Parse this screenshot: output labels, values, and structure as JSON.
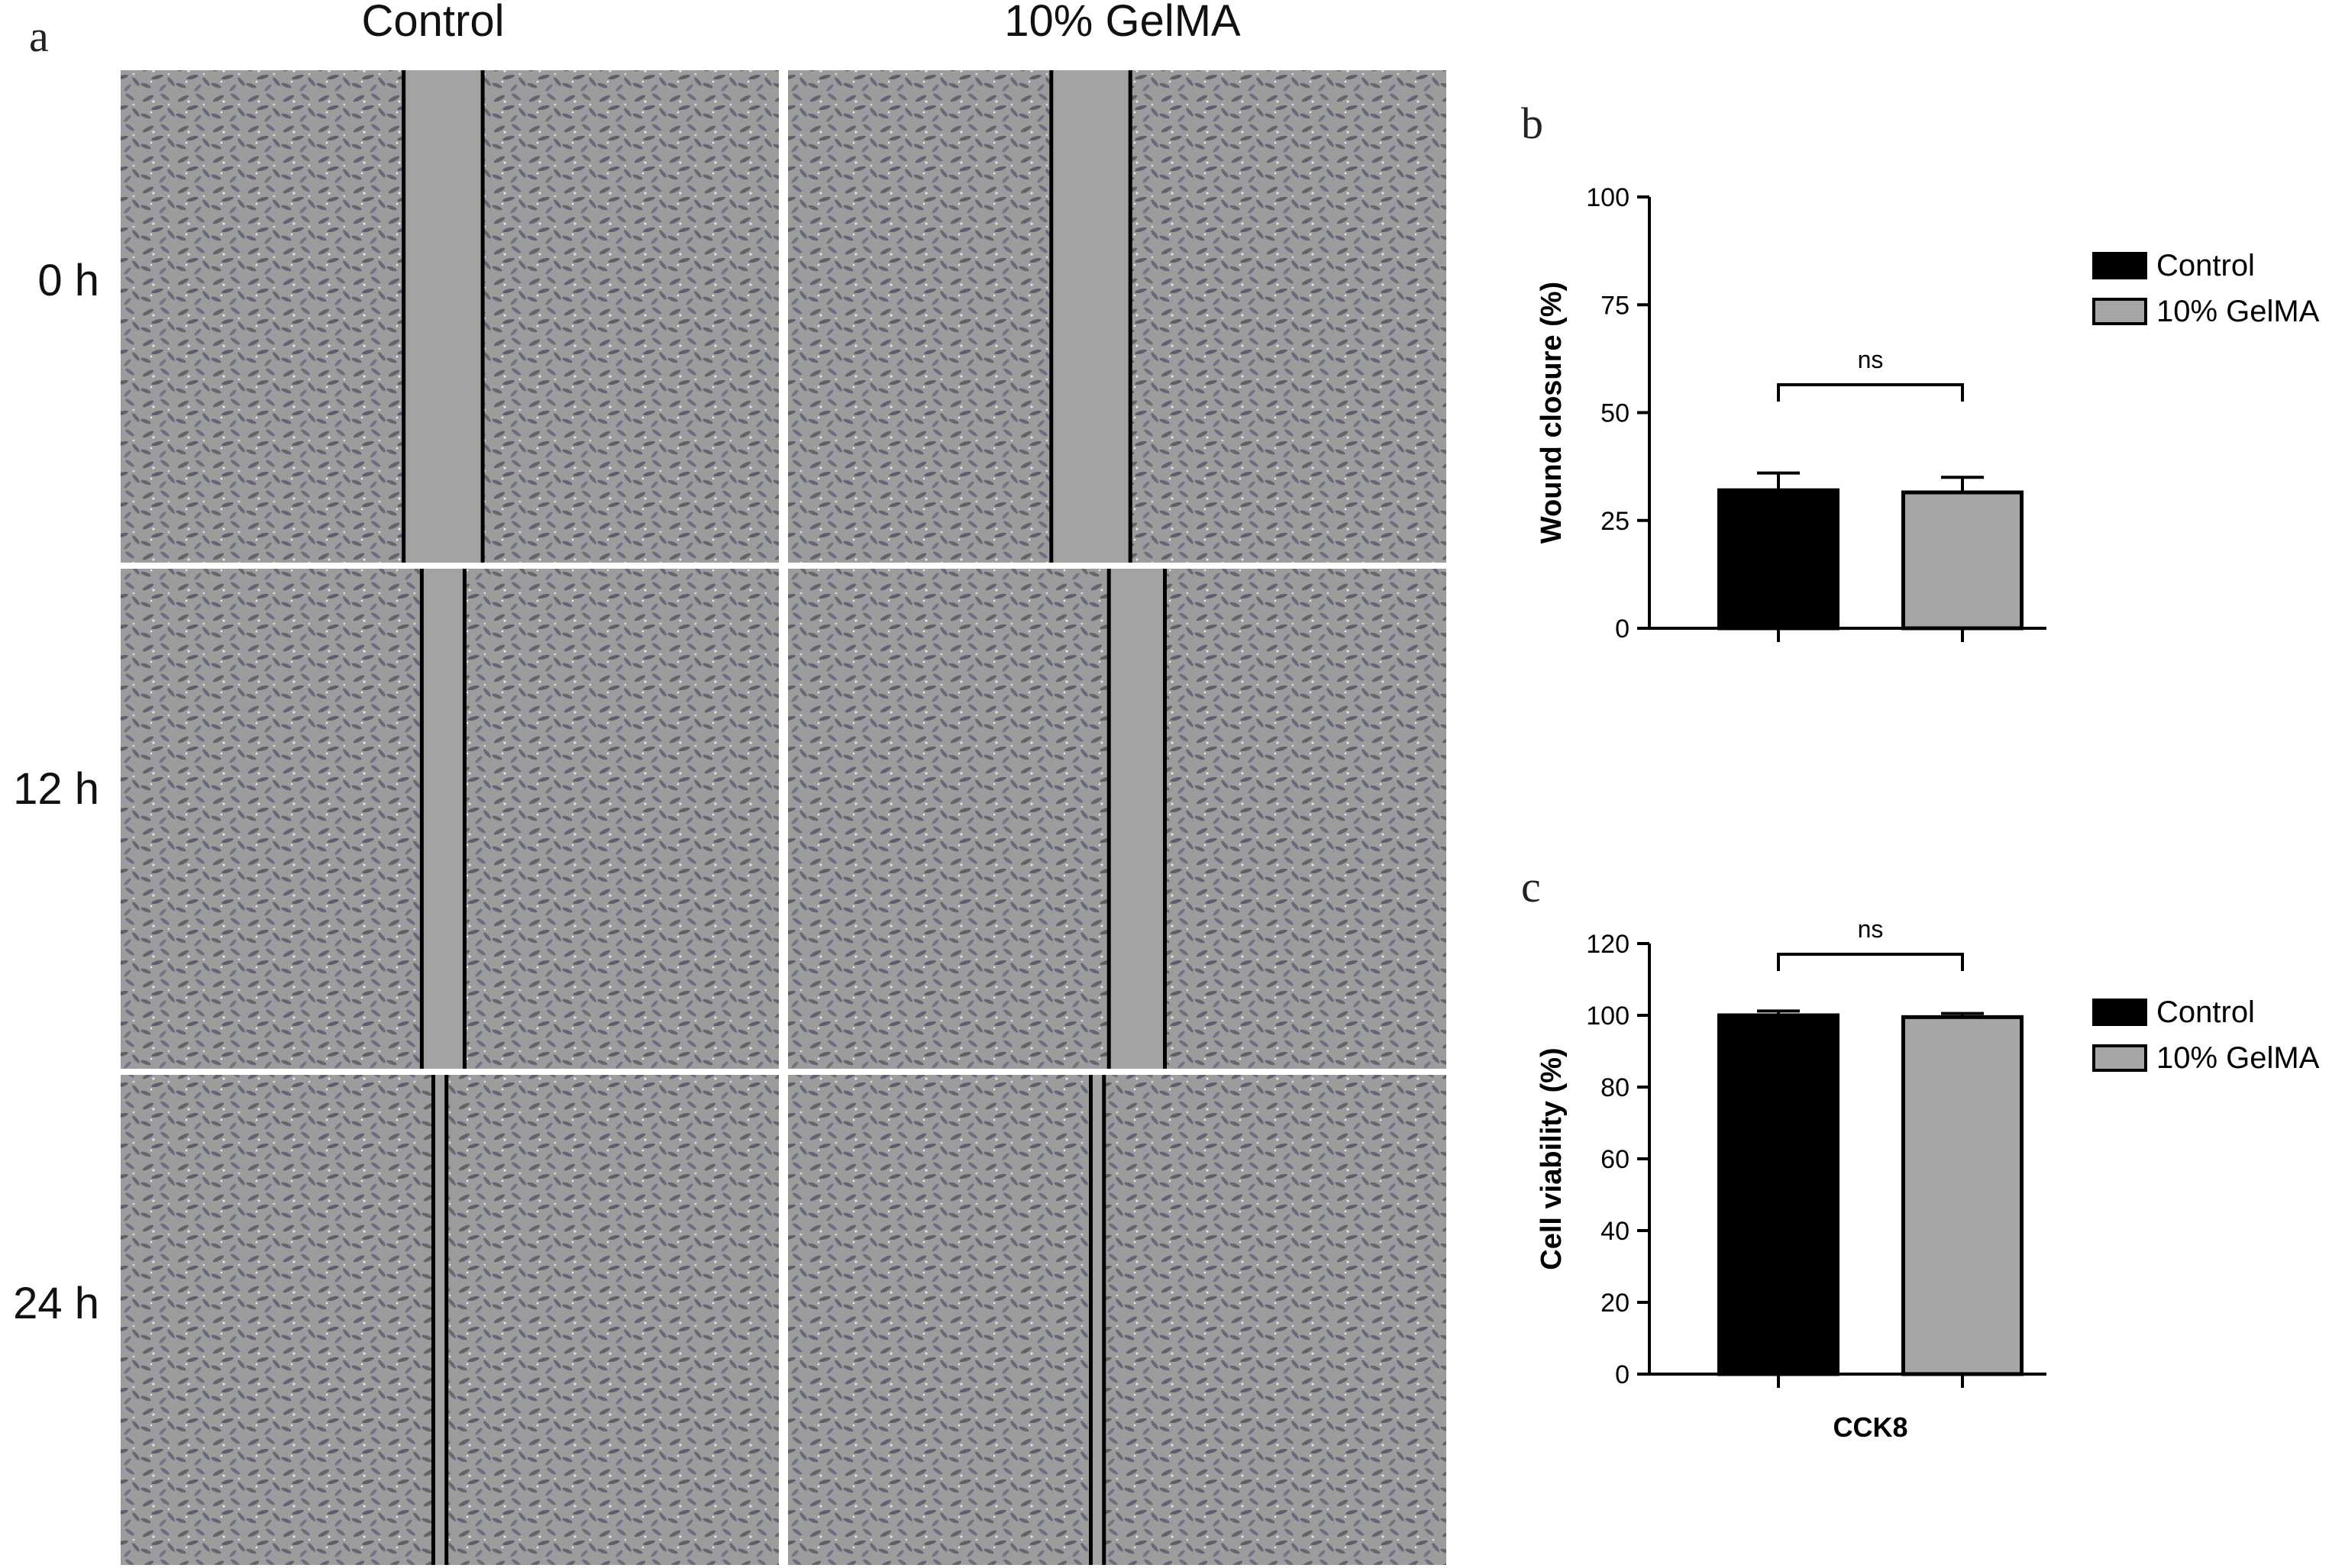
{
  "panels": {
    "a": {
      "letter": "a",
      "columns": [
        "Control",
        "10% GelMA"
      ],
      "rows": [
        "0 h",
        "12 h",
        "24 h"
      ],
      "images": [
        {
          "group": "Control",
          "time": "0 h",
          "gap_fraction": 0.12
        },
        {
          "group": "10% GelMA",
          "time": "0 h",
          "gap_fraction": 0.12
        },
        {
          "group": "Control",
          "time": "12 h",
          "gap_fraction": 0.065
        },
        {
          "group": "10% GelMA",
          "time": "12 h",
          "gap_fraction": 0.085
        },
        {
          "group": "Control",
          "time": "24 h",
          "gap_fraction": 0.02
        },
        {
          "group": "10% GelMA",
          "time": "24 h",
          "gap_fraction": 0.02
        }
      ]
    },
    "b": {
      "letter": "b"
    },
    "c": {
      "letter": "c"
    }
  },
  "chart_data": [
    {
      "type": "bar",
      "panel": "b",
      "ylabel": "Wound closure (%)",
      "xlabel": "",
      "ylim": [
        0,
        100
      ],
      "yticks": [
        0,
        25,
        50,
        75,
        100
      ],
      "series": [
        {
          "name": "Control",
          "values": [
            32
          ],
          "error": [
            4
          ],
          "color": "#000000"
        },
        {
          "name": "10% GelMA",
          "values": [
            31.5
          ],
          "error": [
            3.5
          ],
          "color": "#a6a6a6"
        }
      ],
      "significance": "ns",
      "legend": [
        "Control",
        "10% GelMA"
      ],
      "legend_position": "right"
    },
    {
      "type": "bar",
      "panel": "c",
      "ylabel": "Cell viability (%)",
      "xlabel": "CCK8",
      "ylim": [
        0,
        120
      ],
      "yticks": [
        0,
        20,
        40,
        60,
        80,
        100,
        120
      ],
      "series": [
        {
          "name": "Control",
          "values": [
            100
          ],
          "error": [
            1.2
          ],
          "color": "#000000"
        },
        {
          "name": "10% GelMA",
          "values": [
            99.5
          ],
          "error": [
            1.0
          ],
          "color": "#a6a6a6"
        }
      ],
      "significance": "ns",
      "legend": [
        "Control",
        "10% GelMA"
      ],
      "legend_position": "right"
    }
  ]
}
